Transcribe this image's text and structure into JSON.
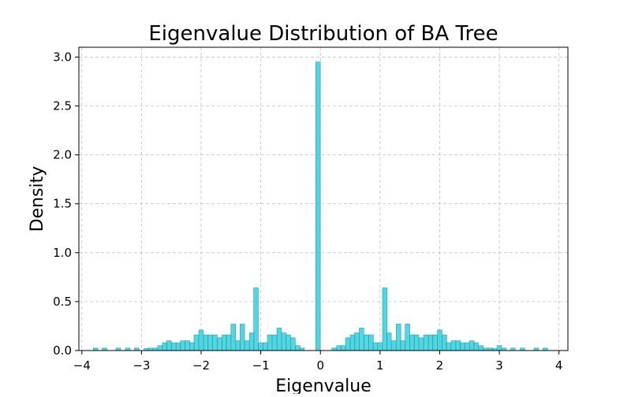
{
  "chart_data": {
    "type": "bar",
    "title": "Eigenvalue Distribution of BA Tree",
    "xlabel": "Eigenvalue",
    "ylabel": "Density",
    "xlim": [
      -4.05,
      4.15
    ],
    "ylim": [
      0,
      3.1
    ],
    "xticks": [
      -4,
      -3,
      -2,
      -1,
      0,
      1,
      2,
      3,
      4
    ],
    "xtick_labels": [
      "−4",
      "−3",
      "−2",
      "−1",
      "0",
      "1",
      "2",
      "3",
      "4"
    ],
    "yticks": [
      0,
      0.5,
      1,
      1.5,
      2,
      2.5,
      3
    ],
    "ytick_labels": [
      "0.0",
      "0.5",
      "1.0",
      "1.5",
      "2.0",
      "2.5",
      "3.0"
    ],
    "grid": true,
    "color": "#1ec6d4",
    "edge_color": "#17a8b5",
    "bin_width": 0.077,
    "bins": [
      [
        -3.77,
        0.025
      ],
      [
        -3.62,
        0.025
      ],
      [
        -3.39,
        0.025
      ],
      [
        -3.23,
        0.025
      ],
      [
        -3.08,
        0.025
      ],
      [
        -2.92,
        0.02
      ],
      [
        -2.85,
        0.025
      ],
      [
        -2.77,
        0.025
      ],
      [
        -2.69,
        0.05
      ],
      [
        -2.61,
        0.08
      ],
      [
        -2.54,
        0.1
      ],
      [
        -2.46,
        0.08
      ],
      [
        -2.38,
        0.08
      ],
      [
        -2.31,
        0.1
      ],
      [
        -2.23,
        0.1
      ],
      [
        -2.15,
        0.08
      ],
      [
        -2.08,
        0.16
      ],
      [
        -2.0,
        0.21
      ],
      [
        -1.92,
        0.16
      ],
      [
        -1.85,
        0.16
      ],
      [
        -1.77,
        0.16
      ],
      [
        -1.69,
        0.13
      ],
      [
        -1.61,
        0.16
      ],
      [
        -1.54,
        0.16
      ],
      [
        -1.46,
        0.27
      ],
      [
        -1.38,
        0.1
      ],
      [
        -1.31,
        0.27
      ],
      [
        -1.23,
        0.1
      ],
      [
        -1.15,
        0.18
      ],
      [
        -1.08,
        0.64
      ],
      [
        -1.0,
        0.08
      ],
      [
        -0.92,
        0.08
      ],
      [
        -0.85,
        0.16
      ],
      [
        -0.77,
        0.16
      ],
      [
        -0.69,
        0.23
      ],
      [
        -0.61,
        0.18
      ],
      [
        -0.54,
        0.16
      ],
      [
        -0.46,
        0.13
      ],
      [
        -0.38,
        0.05
      ],
      [
        -0.31,
        0.025
      ],
      [
        -0.04,
        2.95
      ],
      [
        0.23,
        0.025
      ],
      [
        0.31,
        0.05
      ],
      [
        0.38,
        0.05
      ],
      [
        0.46,
        0.13
      ],
      [
        0.54,
        0.16
      ],
      [
        0.61,
        0.18
      ],
      [
        0.69,
        0.23
      ],
      [
        0.77,
        0.16
      ],
      [
        0.85,
        0.16
      ],
      [
        0.92,
        0.08
      ],
      [
        1.0,
        0.08
      ],
      [
        1.08,
        0.64
      ],
      [
        1.15,
        0.18
      ],
      [
        1.23,
        0.1
      ],
      [
        1.31,
        0.27
      ],
      [
        1.38,
        0.1
      ],
      [
        1.46,
        0.27
      ],
      [
        1.54,
        0.16
      ],
      [
        1.61,
        0.16
      ],
      [
        1.69,
        0.13
      ],
      [
        1.77,
        0.16
      ],
      [
        1.85,
        0.16
      ],
      [
        1.92,
        0.16
      ],
      [
        2.0,
        0.21
      ],
      [
        2.08,
        0.16
      ],
      [
        2.15,
        0.08
      ],
      [
        2.23,
        0.1
      ],
      [
        2.31,
        0.1
      ],
      [
        2.38,
        0.08
      ],
      [
        2.46,
        0.08
      ],
      [
        2.54,
        0.1
      ],
      [
        2.61,
        0.08
      ],
      [
        2.69,
        0.05
      ],
      [
        2.77,
        0.025
      ],
      [
        2.85,
        0.025
      ],
      [
        2.92,
        0.02
      ],
      [
        3.0,
        0.05
      ],
      [
        3.08,
        0.025
      ],
      [
        3.23,
        0.025
      ],
      [
        3.39,
        0.025
      ],
      [
        3.62,
        0.025
      ],
      [
        3.77,
        0.025
      ]
    ]
  }
}
